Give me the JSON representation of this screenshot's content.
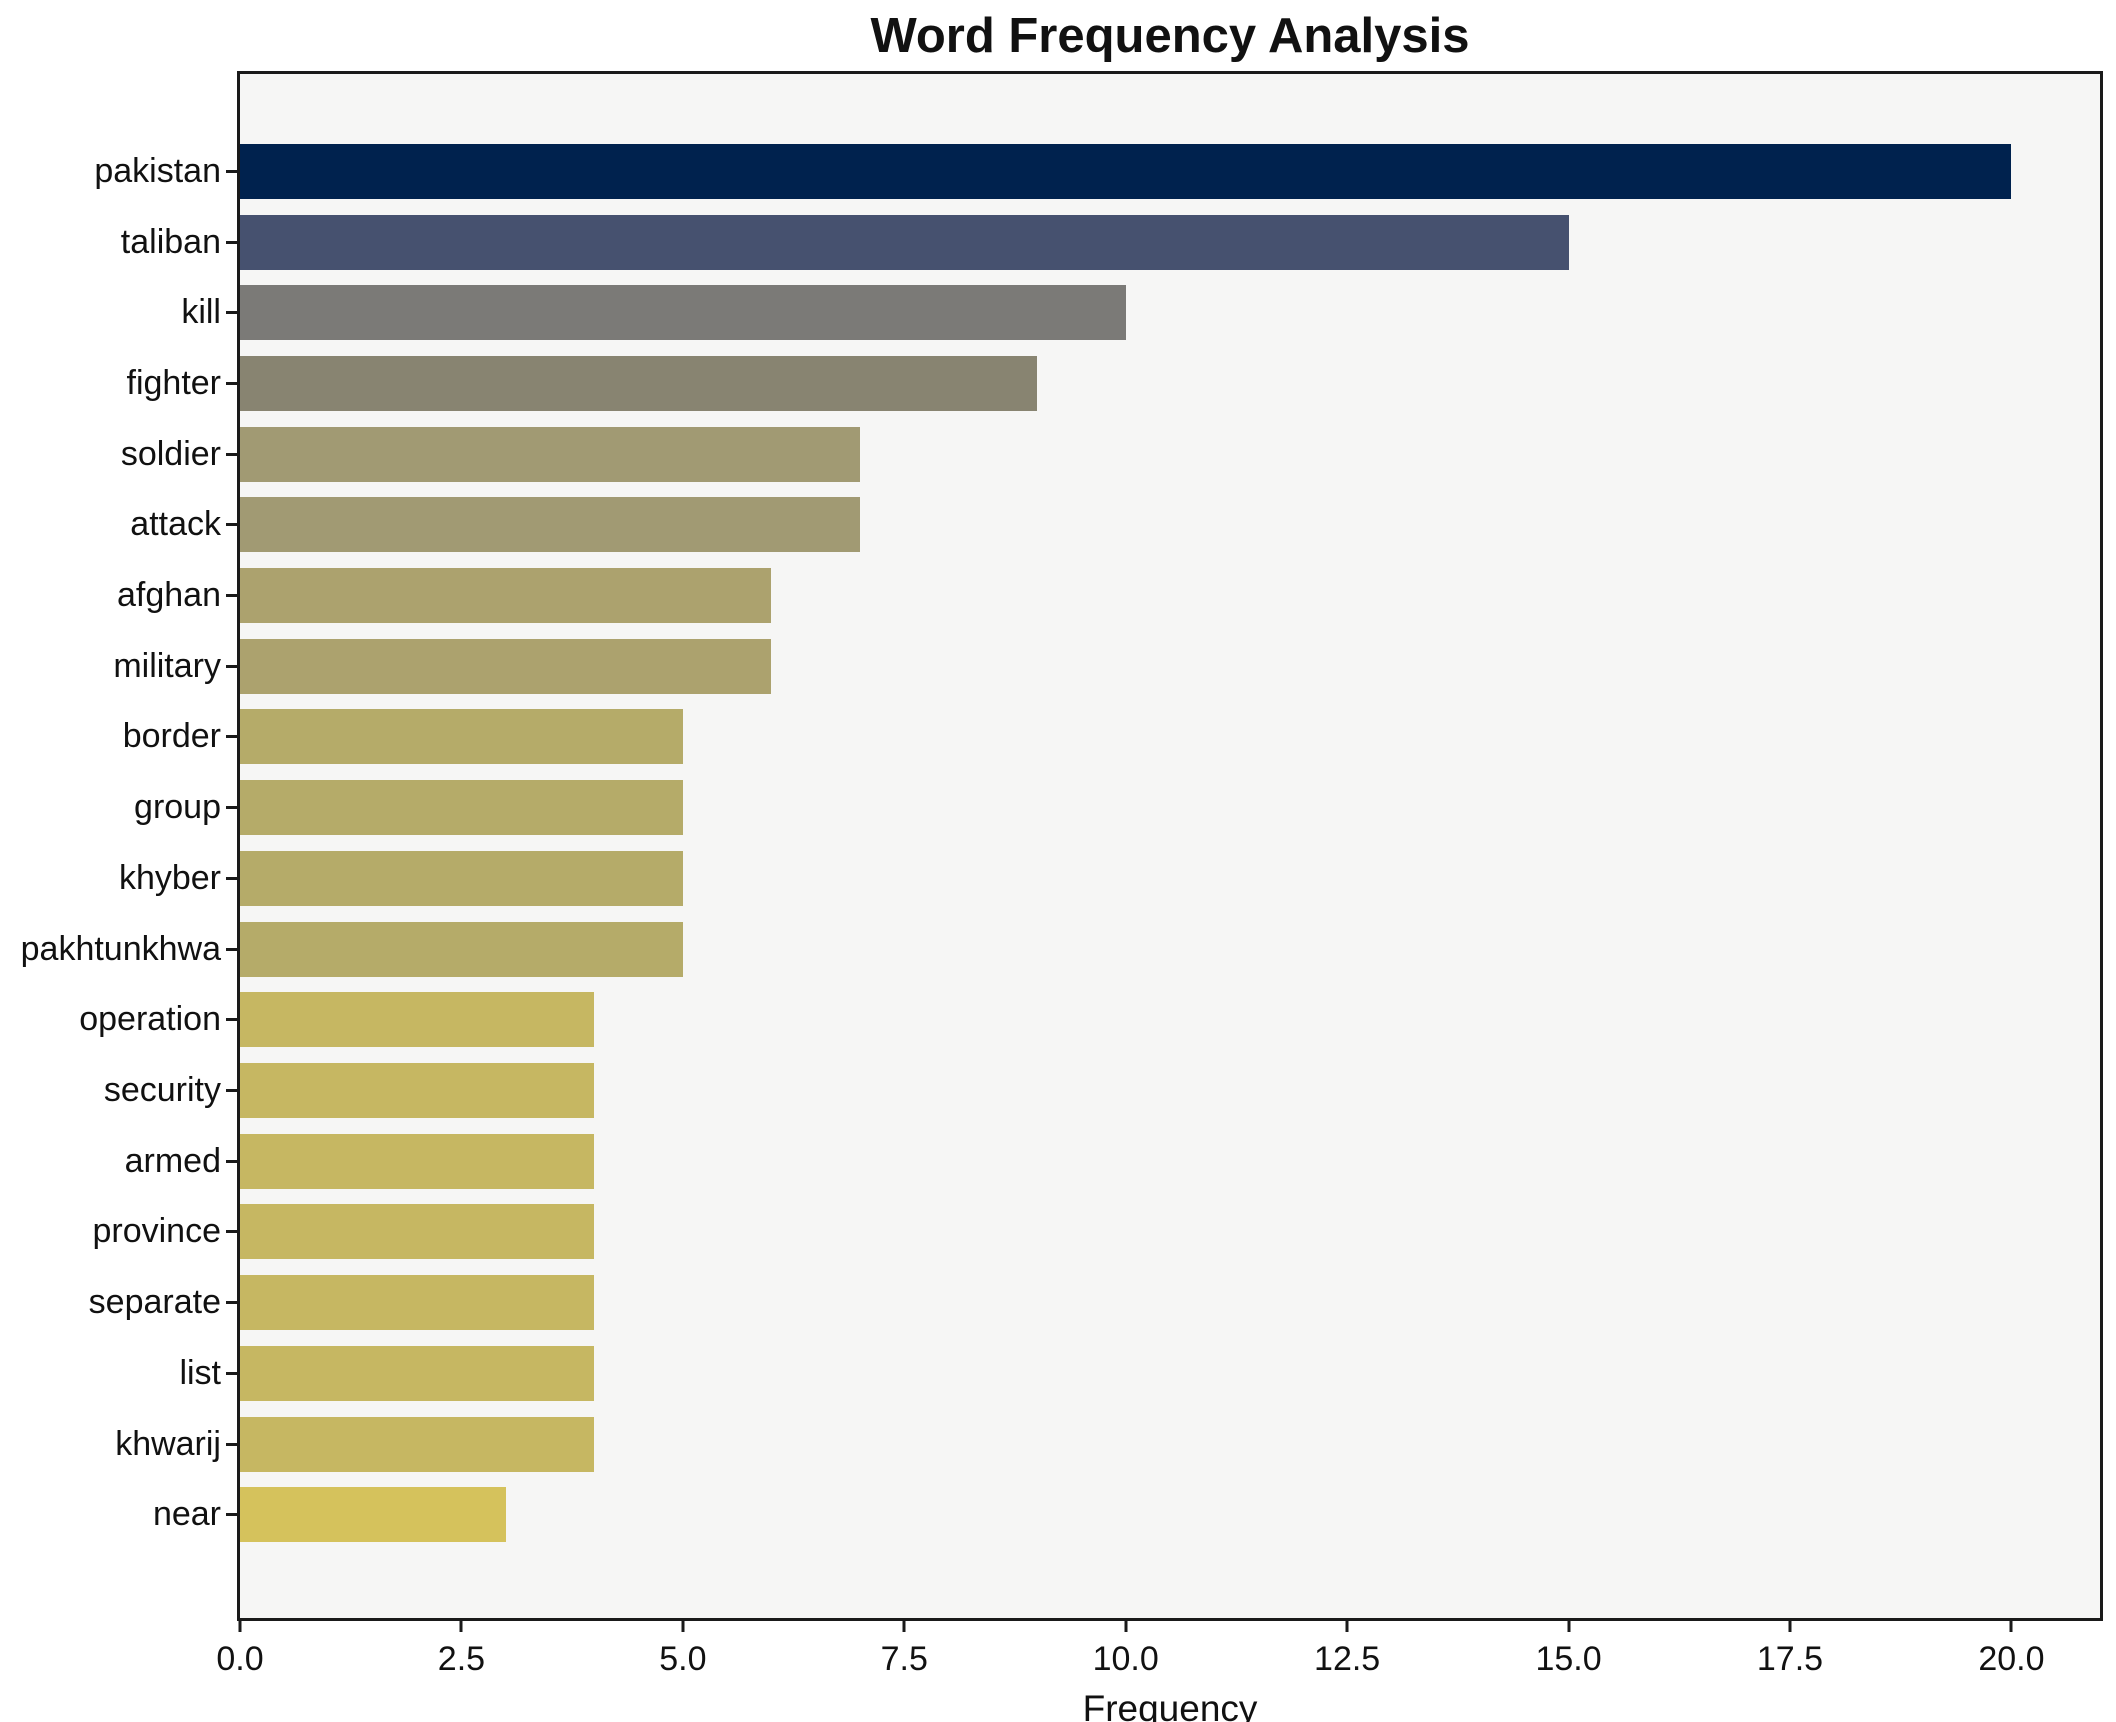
{
  "chart_data": {
    "type": "bar",
    "orientation": "horizontal",
    "title": "Word Frequency Analysis",
    "xlabel": "Frequency",
    "ylabel": "",
    "categories": [
      "pakistan",
      "taliban",
      "kill",
      "fighter",
      "soldier",
      "attack",
      "afghan",
      "military",
      "border",
      "group",
      "khyber",
      "pakhtunkhwa",
      "operation",
      "security",
      "armed",
      "province",
      "separate",
      "list",
      "khwarij",
      "near"
    ],
    "values": [
      20,
      15,
      10,
      9,
      7,
      7,
      6,
      6,
      5,
      5,
      5,
      5,
      4,
      4,
      4,
      4,
      4,
      4,
      4,
      3
    ],
    "bar_colors": [
      "#00224e",
      "#46516f",
      "#7b7a77",
      "#888471",
      "#a19a73",
      "#a19a73",
      "#aca26e",
      "#aca26e",
      "#b5ab69",
      "#b5ab69",
      "#b5ab69",
      "#b5ab69",
      "#c6b762",
      "#c6b762",
      "#c6b762",
      "#c6b762",
      "#c6b762",
      "#c6b762",
      "#c6b762",
      "#d5c25c"
    ],
    "xlim": [
      0,
      21
    ],
    "xticks": [
      0,
      2.5,
      5,
      7.5,
      10,
      12.5,
      15,
      17.5,
      20
    ],
    "xtick_labels": [
      "0.0",
      "2.5",
      "5.0",
      "7.5",
      "10.0",
      "12.5",
      "15.0",
      "17.5",
      "20.0"
    ],
    "grid": "off",
    "legend": "none",
    "colors": {
      "plot_background": "#f6f6f5",
      "figure_background": "#ffffff",
      "spine": "#1a1a1a",
      "text": "#111111"
    }
  }
}
